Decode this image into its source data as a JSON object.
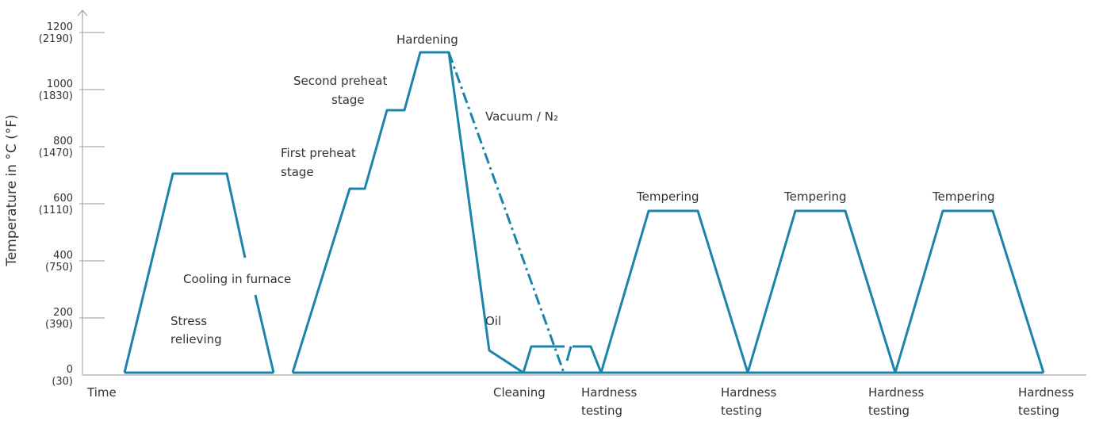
{
  "axis": {
    "label": "Temperature in °C (°F)",
    "x_label": "Time",
    "ticks": [
      {
        "celsius": "0",
        "fahrenheit": "(30)"
      },
      {
        "celsius": "200",
        "fahrenheit": "(390)"
      },
      {
        "celsius": "400",
        "fahrenheit": "(750)"
      },
      {
        "celsius": "600",
        "fahrenheit": "(1110)"
      },
      {
        "celsius": "800",
        "fahrenheit": "(1470)"
      },
      {
        "celsius": "1000",
        "fahrenheit": "(1830)"
      },
      {
        "celsius": "1200",
        "fahrenheit": "(2190)"
      }
    ]
  },
  "labels": {
    "stress_relieving": [
      "Stress",
      "relieving"
    ],
    "cooling": "Cooling in furnace",
    "first_preheat": [
      "First preheat",
      "stage"
    ],
    "second_preheat": [
      "Second preheat",
      "stage"
    ],
    "hardening": "Hardening",
    "vacuum": "Vacuum / N₂",
    "oil": "Oil",
    "cleaning": "Cleaning",
    "tempering": [
      "Tempering",
      "Tempering",
      "Tempering"
    ],
    "hardness_testing": [
      [
        "Hardness",
        "testing"
      ],
      [
        "Hardness",
        "testing"
      ],
      [
        "Hardness",
        "testing"
      ],
      [
        "Hardness",
        "testing"
      ]
    ]
  }
}
